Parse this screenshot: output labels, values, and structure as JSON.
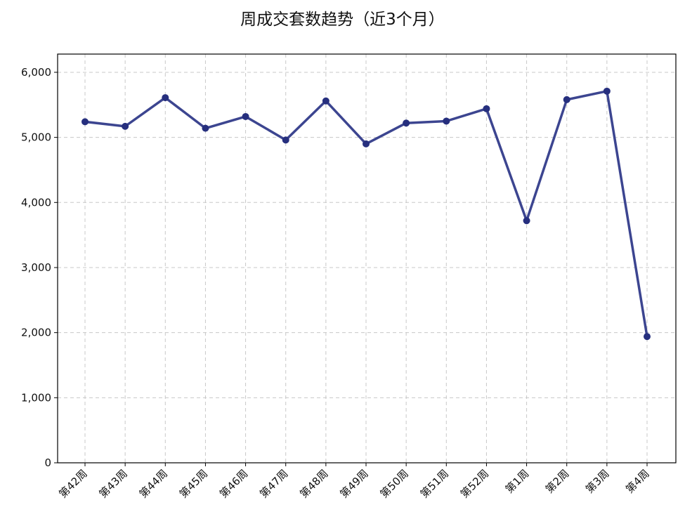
{
  "chart_data": {
    "type": "line",
    "title": "周成交套数趋势（近3个月）",
    "xlabel": "",
    "ylabel": "",
    "categories": [
      "第42周",
      "第43周",
      "第44周",
      "第45周",
      "第46周",
      "第47周",
      "第48周",
      "第49周",
      "第50周",
      "第51周",
      "第52周",
      "第1周",
      "第2周",
      "第3周",
      "第4周"
    ],
    "series": [
      {
        "values": [
          5240,
          5170,
          5610,
          5140,
          5320,
          4960,
          5560,
          4900,
          5220,
          5250,
          5440,
          3720,
          5580,
          5710,
          1940
        ]
      }
    ],
    "ylim": [
      0,
      6280
    ],
    "yticks": [
      0,
      1000,
      2000,
      3000,
      4000,
      5000,
      6000
    ],
    "ytick_labels": [
      "0",
      "1,000",
      "2,000",
      "3,000",
      "4,000",
      "5,000",
      "6,000"
    ],
    "grid": true,
    "line_color": "#3c4590",
    "marker_color": "#262f7e"
  }
}
